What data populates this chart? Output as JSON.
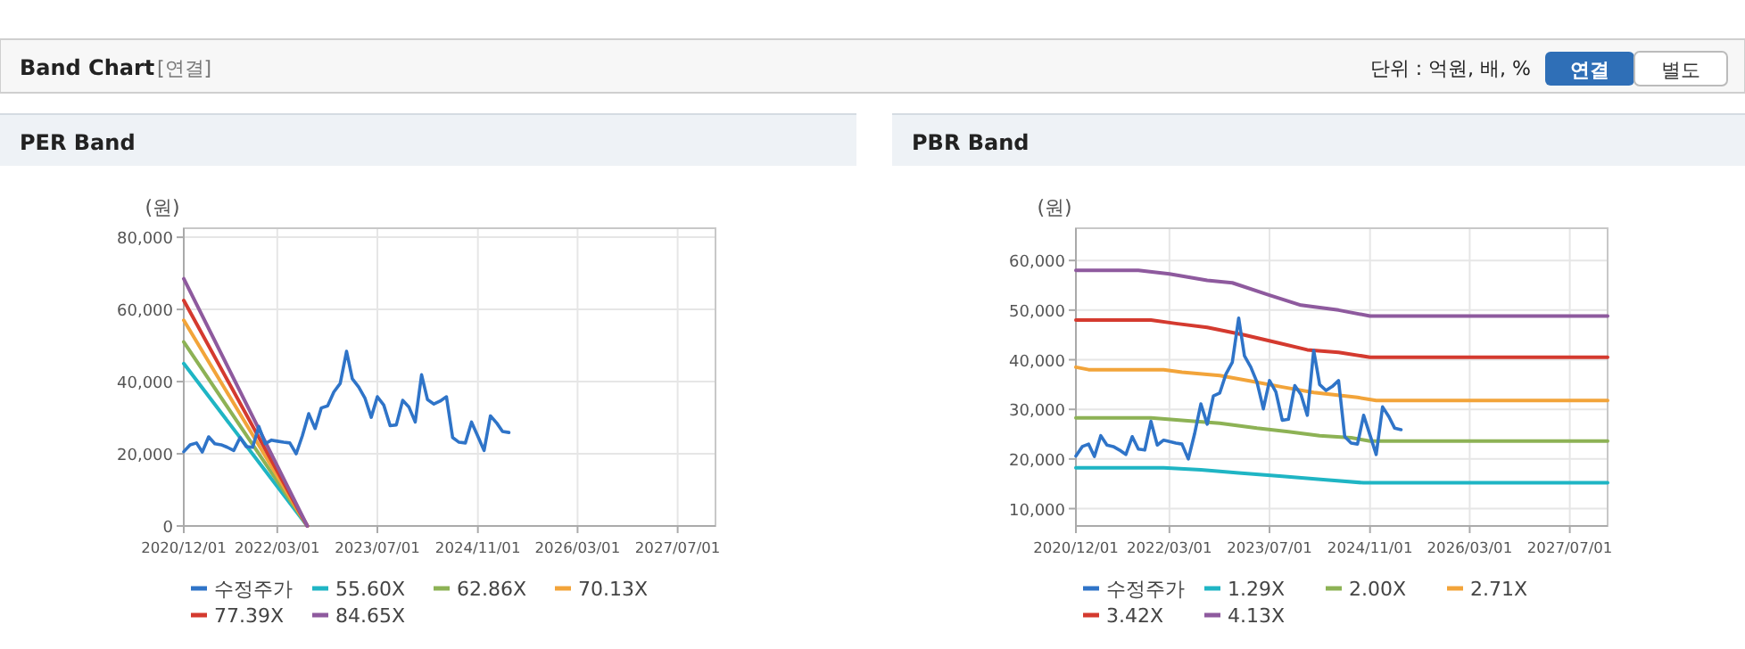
{
  "chart_data": [
    {
      "type": "other",
      "title": "Band Chart",
      "annotations": [
        "[연결]",
        "단위 : 억원, 배, %",
        "연결",
        "별도"
      ]
    },
    {
      "type": "line",
      "title": "PER Band",
      "ylabel": "(원)",
      "grid": true,
      "legend": "bottom",
      "line_style": "solid",
      "xlim": [
        "2020-12-01",
        "2028-01-01"
      ],
      "ylim": [
        0,
        82500
      ],
      "xticks": [
        {
          "value": "2020-12-01",
          "label": "2020/12/01"
        },
        {
          "value": "2022-03-01",
          "label": "2022/03/01"
        },
        {
          "value": "2023-07-01",
          "label": "2023/07/01"
        },
        {
          "value": "2024-11-01",
          "label": "2024/11/01"
        },
        {
          "value": "2026-03-01",
          "label": "2026/03/01"
        },
        {
          "value": "2027-07-01",
          "label": "2027/07/01"
        }
      ],
      "yticks": [
        0,
        {
          "value": 20000,
          "label": "20,000"
        },
        {
          "value": 40000,
          "label": "40,000"
        },
        {
          "value": 60000,
          "label": "60,000"
        },
        {
          "value": 80000,
          "label": "80,000"
        }
      ],
      "x": [
        "2020-12-01",
        "2021-01-01",
        "2021-02-01",
        "2021-03-01",
        "2021-04-01",
        "2021-05-01",
        "2021-06-01",
        "2021-07-01",
        "2021-08-01",
        "2021-09-01",
        "2021-10-01",
        "2021-11-01",
        "2021-12-01",
        "2022-01-01",
        "2022-02-01",
        "2022-03-01",
        "2022-04-01",
        "2022-05-01",
        "2022-06-01",
        "2022-07-01",
        "2022-08-01",
        "2022-09-01",
        "2022-10-01",
        "2022-11-01",
        "2022-12-01",
        "2023-01-01",
        "2023-02-01",
        "2023-03-01",
        "2023-04-01",
        "2023-05-01",
        "2023-06-01",
        "2023-07-01",
        "2023-08-01",
        "2023-09-01",
        "2023-10-01",
        "2023-11-01",
        "2023-12-01",
        "2024-01-01",
        "2024-02-01",
        "2024-03-01",
        "2024-04-01",
        "2024-05-01",
        "2024-06-01",
        "2024-07-01",
        "2024-08-01",
        "2024-09-01",
        "2024-10-01",
        "2024-11-01",
        "2024-12-01",
        "2025-01-01",
        "2025-02-01",
        "2025-03-01",
        "2025-04-01"
      ],
      "series": [
        {
          "name": "수정주가",
          "color": "#2f74c8",
          "values": [
            20600,
            22500,
            23000,
            20500,
            24700,
            22800,
            22500,
            21800,
            20900,
            24500,
            22000,
            21800,
            27600,
            22800,
            23800,
            23500,
            23200,
            23000,
            20000,
            25000,
            31100,
            27000,
            32700,
            33300,
            37100,
            39500,
            48400,
            40800,
            38500,
            35500,
            30100,
            35800,
            33500,
            27800,
            28000,
            34800,
            33000,
            28800,
            41900,
            35000,
            33800,
            34600,
            35800,
            24500,
            23200,
            23000,
            28800,
            24800,
            20900,
            30500,
            28500,
            26200,
            25900
          ]
        },
        {
          "name": "55.60X",
          "color": "#1fb5c4",
          "x": [
            "2020-12-01",
            "2022-07-25"
          ],
          "values": [
            45000,
            0
          ]
        },
        {
          "name": "62.86X",
          "color": "#8db255",
          "x": [
            "2020-12-01",
            "2022-07-25"
          ],
          "values": [
            51000,
            0
          ]
        },
        {
          "name": "70.13X",
          "color": "#f2a43a",
          "x": [
            "2020-12-01",
            "2022-07-25"
          ],
          "values": [
            57000,
            0
          ]
        },
        {
          "name": "77.39X",
          "color": "#d43a2f",
          "x": [
            "2020-12-01",
            "2022-07-25"
          ],
          "values": [
            62500,
            0
          ]
        },
        {
          "name": "84.65X",
          "color": "#8e5a9e",
          "x": [
            "2020-12-01",
            "2022-07-25"
          ],
          "values": [
            68500,
            0
          ]
        }
      ]
    },
    {
      "type": "line",
      "title": "PBR Band",
      "ylabel": "(원)",
      "grid": true,
      "legend": "bottom",
      "line_style": "solid",
      "xlim": [
        "2020-12-01",
        "2028-01-01"
      ],
      "ylim": [
        6500,
        66500
      ],
      "xticks": [
        {
          "value": "2020-12-01",
          "label": "2020/12/01"
        },
        {
          "value": "2022-03-01",
          "label": "2022/03/01"
        },
        {
          "value": "2023-07-01",
          "label": "2023/07/01"
        },
        {
          "value": "2024-11-01",
          "label": "2024/11/01"
        },
        {
          "value": "2026-03-01",
          "label": "2026/03/01"
        },
        {
          "value": "2027-07-01",
          "label": "2027/07/01"
        }
      ],
      "yticks": [
        {
          "value": 10000,
          "label": "10,000"
        },
        {
          "value": 20000,
          "label": "20,000"
        },
        {
          "value": 30000,
          "label": "30,000"
        },
        {
          "value": 40000,
          "label": "40,000"
        },
        {
          "value": 50000,
          "label": "50,000"
        },
        {
          "value": 60000,
          "label": "60,000"
        }
      ],
      "x": [
        "2020-12-01",
        "2021-01-01",
        "2021-02-01",
        "2021-03-01",
        "2021-04-01",
        "2021-05-01",
        "2021-06-01",
        "2021-07-01",
        "2021-08-01",
        "2021-09-01",
        "2021-10-01",
        "2021-11-01",
        "2021-12-01",
        "2022-01-01",
        "2022-02-01",
        "2022-03-01",
        "2022-04-01",
        "2022-05-01",
        "2022-06-01",
        "2022-07-01",
        "2022-08-01",
        "2022-09-01",
        "2022-10-01",
        "2022-11-01",
        "2022-12-01",
        "2023-01-01",
        "2023-02-01",
        "2023-03-01",
        "2023-04-01",
        "2023-05-01",
        "2023-06-01",
        "2023-07-01",
        "2023-08-01",
        "2023-09-01",
        "2023-10-01",
        "2023-11-01",
        "2023-12-01",
        "2024-01-01",
        "2024-02-01",
        "2024-03-01",
        "2024-04-01",
        "2024-05-01",
        "2024-06-01",
        "2024-07-01",
        "2024-08-01",
        "2024-09-01",
        "2024-10-01",
        "2024-11-01",
        "2024-12-01",
        "2025-01-01",
        "2025-02-01",
        "2025-03-01",
        "2025-04-01"
      ],
      "series": [
        {
          "name": "수정주가",
          "color": "#2f74c8",
          "values": [
            20600,
            22500,
            23000,
            20500,
            24700,
            22800,
            22500,
            21800,
            20900,
            24500,
            22000,
            21800,
            27600,
            22800,
            23800,
            23500,
            23200,
            23000,
            20000,
            25000,
            31100,
            27000,
            32700,
            33300,
            37100,
            39500,
            48400,
            40800,
            38500,
            35500,
            30100,
            35800,
            33500,
            27800,
            28000,
            34800,
            33000,
            28800,
            41900,
            35000,
            33800,
            34600,
            35800,
            24500,
            23200,
            23000,
            28800,
            24800,
            20900,
            30500,
            28500,
            26200,
            25900
          ]
        },
        {
          "name": "1.29X",
          "color": "#1fb5c4",
          "x": [
            "2020-12-01",
            "2022-02-01",
            "2022-08-01",
            "2023-02-01",
            "2023-09-01",
            "2024-04-01",
            "2024-10-01",
            "2028-01-01"
          ],
          "values": [
            18200,
            18200,
            17800,
            17200,
            16500,
            15800,
            15200,
            15200
          ]
        },
        {
          "name": "2.00X",
          "color": "#8db255",
          "x": [
            "2020-12-01",
            "2021-12-01",
            "2022-05-01",
            "2022-11-01",
            "2023-05-01",
            "2023-10-01",
            "2024-03-01",
            "2024-08-01",
            "2024-11-01",
            "2028-01-01"
          ],
          "values": [
            28300,
            28300,
            27800,
            27200,
            26200,
            25500,
            24700,
            24300,
            23600,
            23600
          ]
        },
        {
          "name": "2.71X",
          "color": "#f2a43a",
          "x": [
            "2020-12-01",
            "2021-02-01",
            "2022-02-01",
            "2022-05-01",
            "2022-11-01",
            "2023-04-01",
            "2023-09-01",
            "2024-02-01",
            "2024-09-01",
            "2024-12-01",
            "2028-01-01"
          ],
          "values": [
            38500,
            38000,
            38000,
            37500,
            36800,
            35700,
            34500,
            33400,
            32400,
            31800,
            31800
          ]
        },
        {
          "name": "3.42X",
          "color": "#d43a2f",
          "x": [
            "2020-12-01",
            "2021-12-01",
            "2022-04-01",
            "2022-09-01",
            "2023-03-01",
            "2023-08-01",
            "2024-01-01",
            "2024-06-01",
            "2024-11-01",
            "2028-01-01"
          ],
          "values": [
            48000,
            48000,
            47300,
            46500,
            45000,
            43500,
            42000,
            41500,
            40500,
            40500
          ]
        },
        {
          "name": "4.13X",
          "color": "#8e5a9e",
          "x": [
            "2020-12-01",
            "2021-10-01",
            "2022-03-01",
            "2022-09-01",
            "2023-01-01",
            "2023-07-01",
            "2023-12-01",
            "2024-06-01",
            "2024-11-01",
            "2028-01-01"
          ],
          "values": [
            58000,
            58000,
            57300,
            56000,
            55500,
            53000,
            51000,
            50000,
            48800,
            48800
          ]
        }
      ]
    }
  ]
}
